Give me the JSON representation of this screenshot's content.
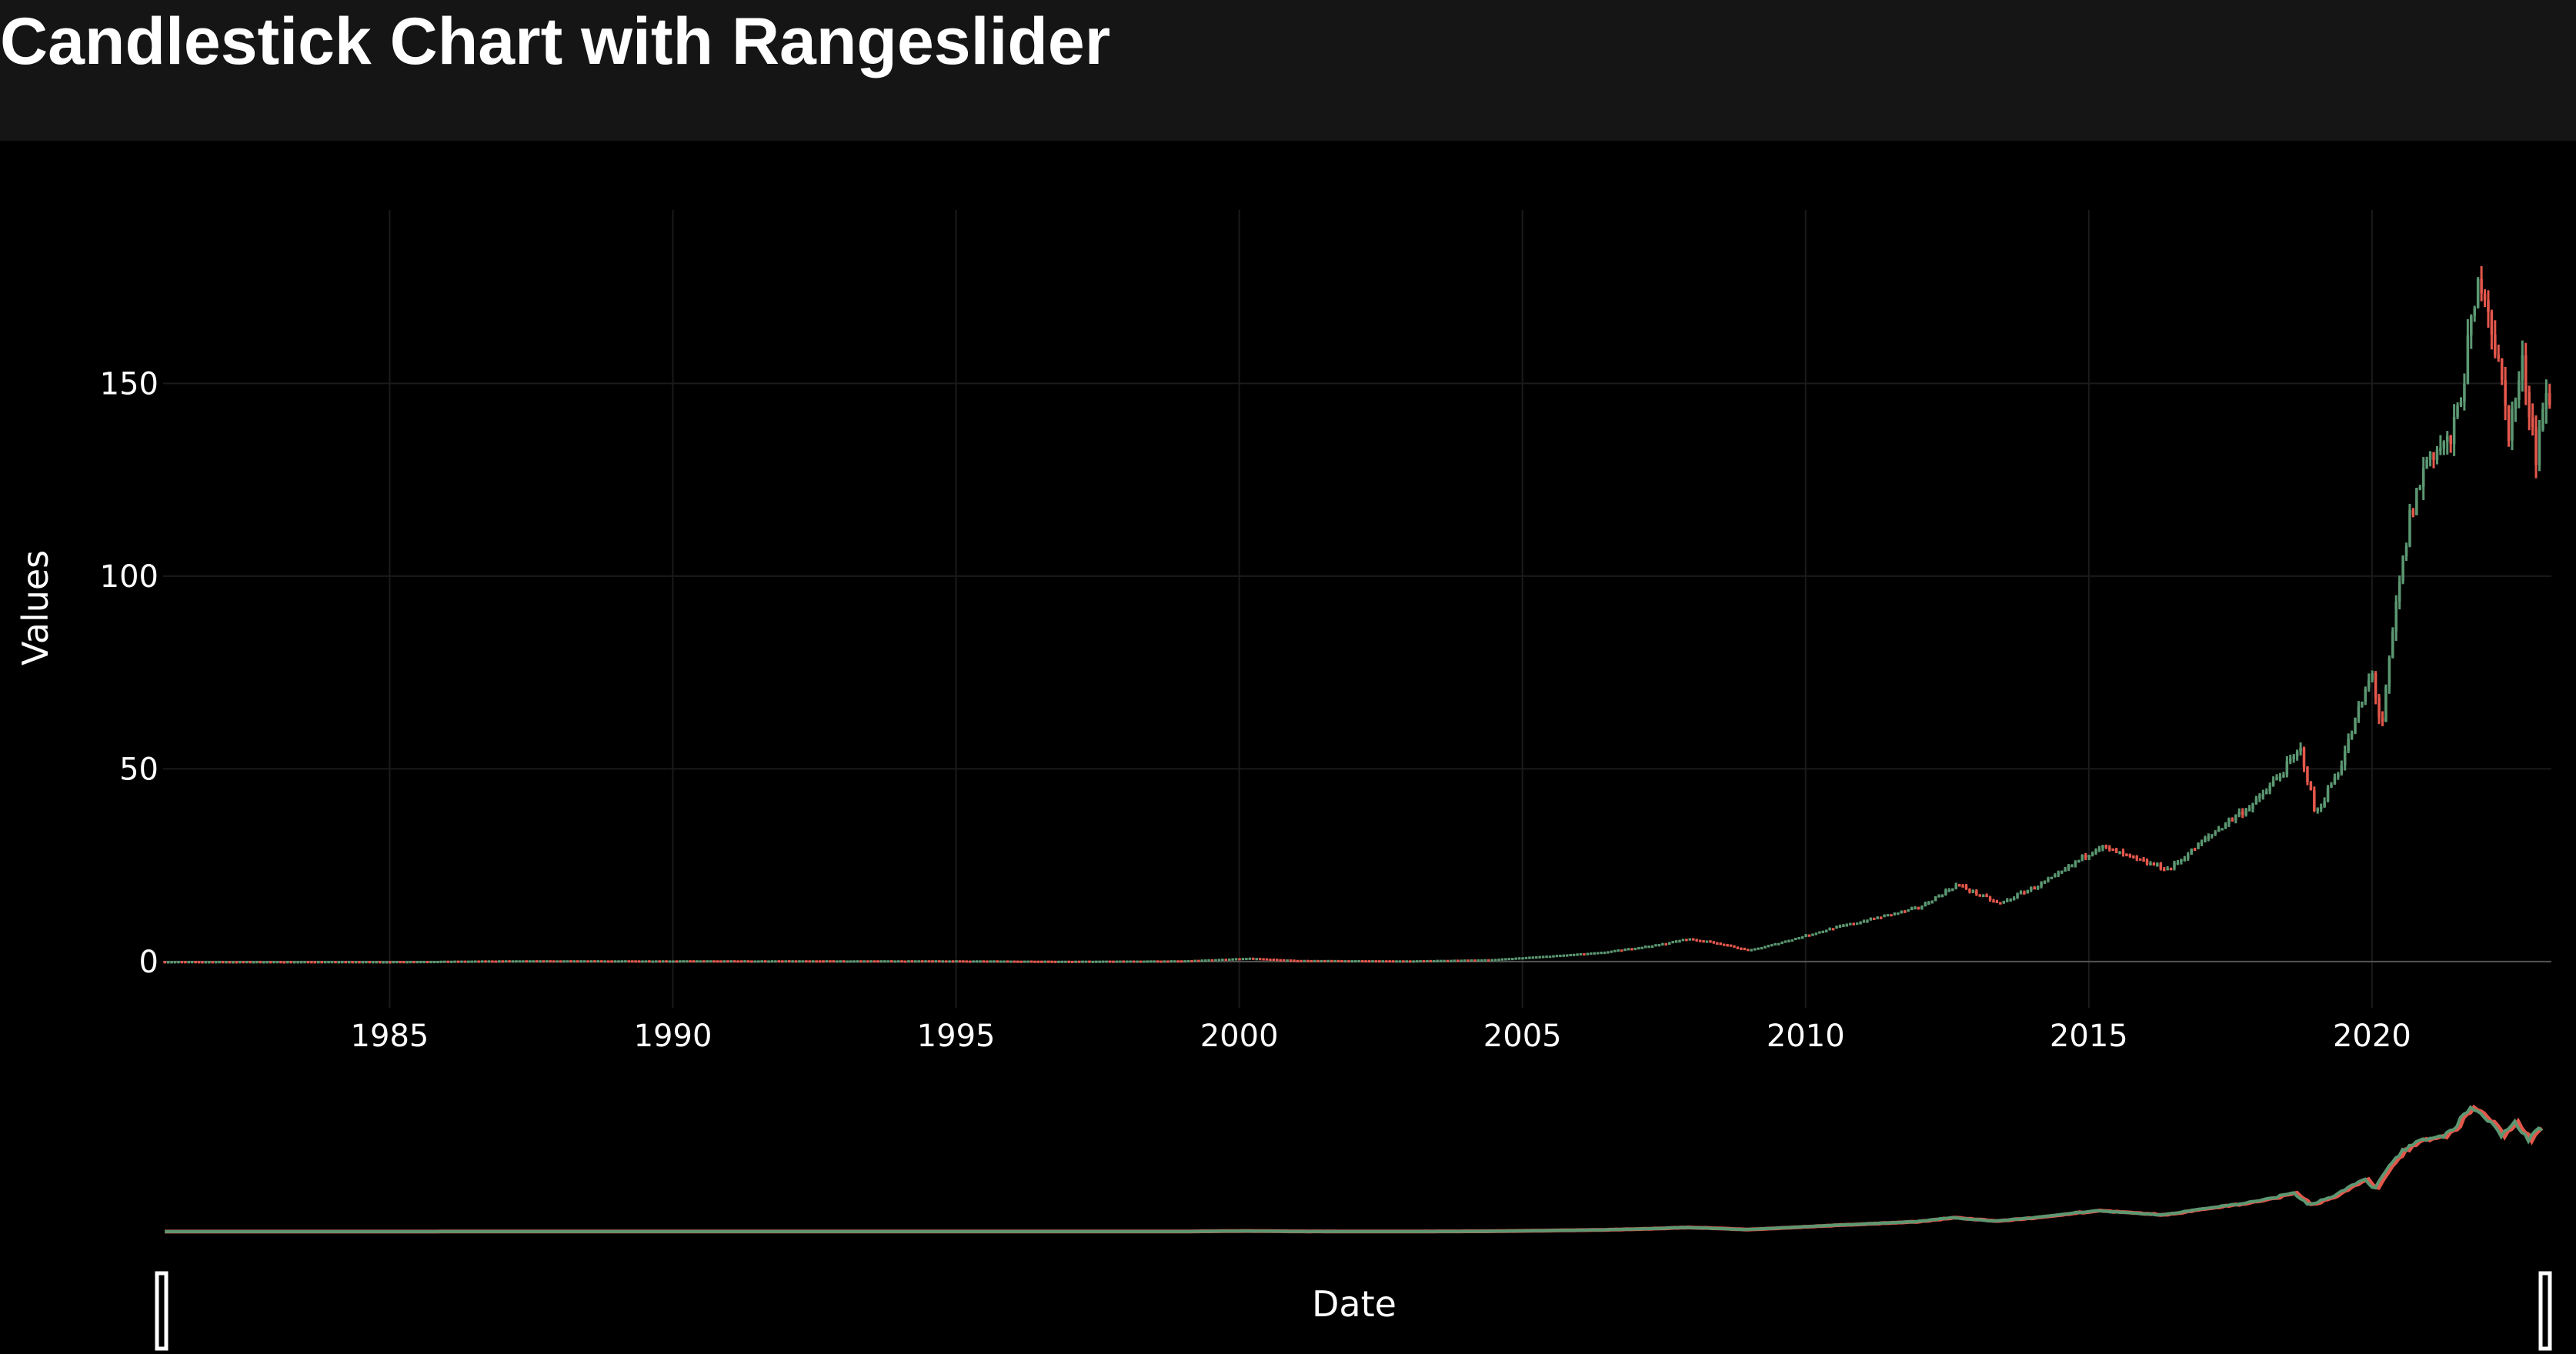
{
  "page": {
    "title": "Candlestick Chart with Rangeslider"
  },
  "colors": {
    "background": "#000000",
    "header_background": "#151515",
    "increasing": "#5b9872",
    "decreasing": "#e4574b",
    "grid": "#1a1a1a",
    "zero_line": "#555555",
    "text": "#ffffff"
  },
  "chart_data": {
    "type": "candlestick",
    "xlabel": "Date",
    "ylabel": "Values",
    "xlim": [
      "1981-01",
      "2023-03"
    ],
    "ylim": [
      -12,
      195
    ],
    "x_ticks": [
      "1985",
      "1990",
      "1995",
      "2000",
      "2005",
      "2010",
      "2015",
      "2020"
    ],
    "y_ticks": [
      0,
      50,
      100,
      150
    ],
    "grid": true,
    "rangeslider": true,
    "series": [
      {
        "x": [
          "1981-01",
          "1983-01",
          "1985-01",
          "1987-01",
          "1989-01",
          "1991-01",
          "1993-01",
          "1995-01",
          "1997-01",
          "1999-01",
          "2000-03",
          "2001-01",
          "2003-01",
          "2004-06",
          "2005-06",
          "2006-06",
          "2007-06",
          "2007-12",
          "2008-06",
          "2009-01",
          "2009-06",
          "2010-06",
          "2011-06",
          "2012-01",
          "2012-09",
          "2013-06",
          "2014-06",
          "2015-03",
          "2015-12",
          "2016-06",
          "2017-06",
          "2018-01",
          "2018-10",
          "2019-01",
          "2019-06",
          "2020-01",
          "2020-03",
          "2020-06",
          "2020-09",
          "2021-01",
          "2021-06",
          "2021-12",
          "2022-01",
          "2022-06",
          "2022-09",
          "2022-12",
          "2023-01"
        ],
        "close": [
          0.1,
          0.1,
          0.1,
          0.3,
          0.3,
          0.3,
          0.3,
          0.3,
          0.2,
          0.3,
          1,
          0.4,
          0.3,
          0.6,
          1.5,
          2.5,
          4.5,
          6,
          5,
          3,
          4.5,
          8.5,
          12,
          14,
          20,
          15,
          22,
          30,
          26,
          24,
          36,
          42,
          55,
          38,
          50,
          75,
          60,
          91,
          115,
          132,
          135,
          178,
          175,
          138,
          155,
          130,
          145
        ]
      }
    ]
  },
  "rangeslider": {
    "start_handle": "left",
    "end_handle": "right"
  }
}
